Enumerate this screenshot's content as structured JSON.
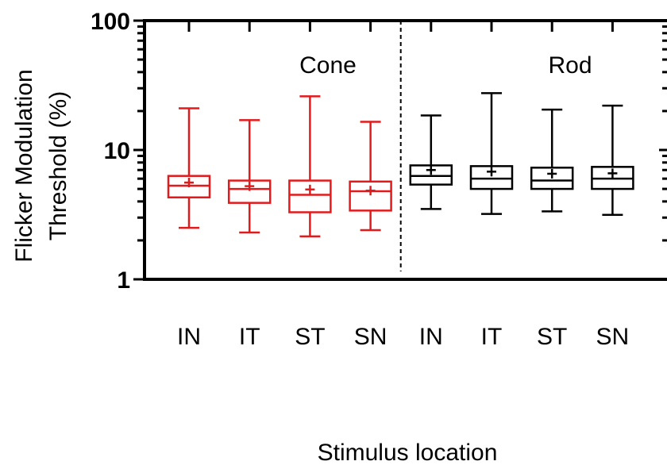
{
  "chart_data": {
    "type": "boxplot",
    "ylabel_line1": "Flicker Modulation",
    "ylabel_line2": "Threshold (%)",
    "xlabel": "Stimulus location",
    "y_scale": "log",
    "ylim": [
      1,
      100
    ],
    "y_ticks": [
      1,
      10,
      100
    ],
    "y_tick_labels": [
      "1",
      "10",
      "100"
    ],
    "grid": false,
    "groups": [
      {
        "label": "Cone",
        "color": "#e31a1c",
        "boxes": [
          {
            "category": "IN",
            "min": 2.5,
            "q1": 4.3,
            "median": 5.3,
            "q3": 6.3,
            "max": 21.0,
            "mean": 5.6
          },
          {
            "category": "IT",
            "min": 2.3,
            "q1": 3.9,
            "median": 5.0,
            "q3": 5.8,
            "max": 17.0,
            "mean": 5.25
          },
          {
            "category": "ST",
            "min": 2.15,
            "q1": 3.3,
            "median": 4.5,
            "q3": 5.8,
            "max": 26.0,
            "mean": 4.95
          },
          {
            "category": "SN",
            "min": 2.4,
            "q1": 3.4,
            "median": 4.8,
            "q3": 5.7,
            "max": 16.5,
            "mean": 4.85
          }
        ]
      },
      {
        "label": "Rod",
        "color": "#000000",
        "boxes": [
          {
            "category": "IN",
            "min": 3.5,
            "q1": 5.4,
            "median": 6.3,
            "q3": 7.6,
            "max": 18.5,
            "mean": 7.0
          },
          {
            "category": "IT",
            "min": 3.2,
            "q1": 5.0,
            "median": 6.0,
            "q3": 7.5,
            "max": 27.5,
            "mean": 6.8
          },
          {
            "category": "ST",
            "min": 3.35,
            "q1": 5.0,
            "median": 5.8,
            "q3": 7.3,
            "max": 20.5,
            "mean": 6.55
          },
          {
            "category": "SN",
            "min": 3.15,
            "q1": 5.0,
            "median": 6.0,
            "q3": 7.4,
            "max": 22.0,
            "mean": 6.6
          }
        ]
      }
    ]
  }
}
